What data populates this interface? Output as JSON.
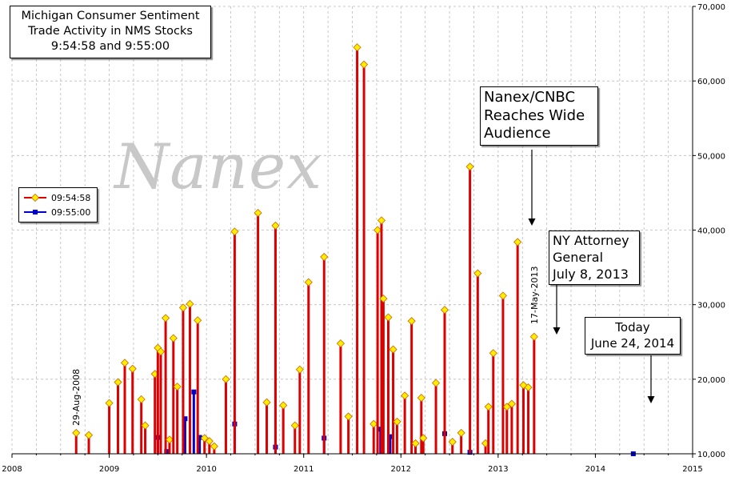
{
  "watermark": "Nanex",
  "chart_data": {
    "type": "bar",
    "title": [
      "Michigan Consumer Sentiment",
      "Trade Activity in NMS Stocks",
      "9:54:58 and 9:55:00"
    ],
    "xlim": [
      2008.0,
      2015.0
    ],
    "ylim": [
      10000,
      70000
    ],
    "x_ticks": [
      2008,
      2009,
      2010,
      2011,
      2012,
      2013,
      2014,
      2015
    ],
    "y_ticks": [
      10000,
      20000,
      30000,
      40000,
      50000,
      60000,
      70000
    ],
    "y_tick_labels": [
      "10,000",
      "20,000",
      "30,000",
      "40,000",
      "50,000",
      "60,000",
      "70,000"
    ],
    "grid": true,
    "legend_position": "left",
    "colors": {
      "s1": "#dd0000",
      "s1_marker": "#ffee00",
      "s2": "#0000cc",
      "grid": "#bbbbbb"
    },
    "series": [
      {
        "name": "09:54:58",
        "x": [
          2008.66,
          2008.79,
          2009.0,
          2009.09,
          2009.16,
          2009.24,
          2009.33,
          2009.37,
          2009.47,
          2009.5,
          2009.53,
          2009.58,
          2009.62,
          2009.66,
          2009.7,
          2009.76,
          2009.83,
          2009.91,
          2009.98,
          2010.03,
          2010.08,
          2010.2,
          2010.29,
          2010.53,
          2010.62,
          2010.71,
          2010.79,
          2010.91,
          2010.96,
          2011.05,
          2011.21,
          2011.38,
          2011.46,
          2011.55,
          2011.62,
          2011.72,
          2011.76,
          2011.8,
          2011.82,
          2011.87,
          2011.92,
          2011.96,
          2012.04,
          2012.11,
          2012.15,
          2012.21,
          2012.23,
          2012.36,
          2012.45,
          2012.53,
          2012.62,
          2012.71,
          2012.79,
          2012.87,
          2012.9,
          2012.95,
          2013.05,
          2013.09,
          2013.14,
          2013.2,
          2013.26,
          2013.31,
          2013.37
        ],
        "values": [
          12800,
          12500,
          16800,
          19600,
          22200,
          21400,
          17300,
          13800,
          20700,
          24200,
          23700,
          28200,
          11900,
          25500,
          19000,
          29600,
          30100,
          27900,
          12100,
          11700,
          11000,
          20000,
          39800,
          42300,
          16900,
          40600,
          16500,
          13800,
          21300,
          33000,
          36400,
          24800,
          15000,
          64500,
          62200,
          14000,
          40000,
          41300,
          30800,
          28300,
          24000,
          14300,
          17800,
          27800,
          11400,
          17500,
          12100,
          19500,
          29300,
          11600,
          12800,
          48500,
          34200,
          11400,
          16300,
          23500,
          31200,
          16300,
          16700,
          38400,
          19200,
          18900,
          25700
        ]
      },
      {
        "name": "09:55:00",
        "x": [
          2009.5,
          2009.59,
          2009.78,
          2009.87,
          2009.93,
          2010.29,
          2010.71,
          2011.21,
          2011.79,
          2011.89,
          2012.45,
          2012.71,
          2014.39
        ],
        "values": [
          12200,
          10300,
          14700,
          18300,
          12200,
          14000,
          10900,
          12100,
          13300,
          12300,
          12700,
          10200,
          10000
        ]
      }
    ],
    "annotations": [
      {
        "id": "date-label",
        "text": "29-Aug-2008",
        "x": 2008.66
      },
      {
        "id": "date-label-2",
        "text": "17-May-2013",
        "x": 2013.37
      },
      {
        "id": "cnbc",
        "text": [
          "Nanex/CNBC",
          "Reaches Wide",
          "Audience"
        ]
      },
      {
        "id": "nyag",
        "text": [
          "NY Attorney",
          "General",
          "July 8, 2013"
        ]
      },
      {
        "id": "today",
        "text": [
          "Today",
          "June 24, 2014"
        ]
      }
    ]
  }
}
